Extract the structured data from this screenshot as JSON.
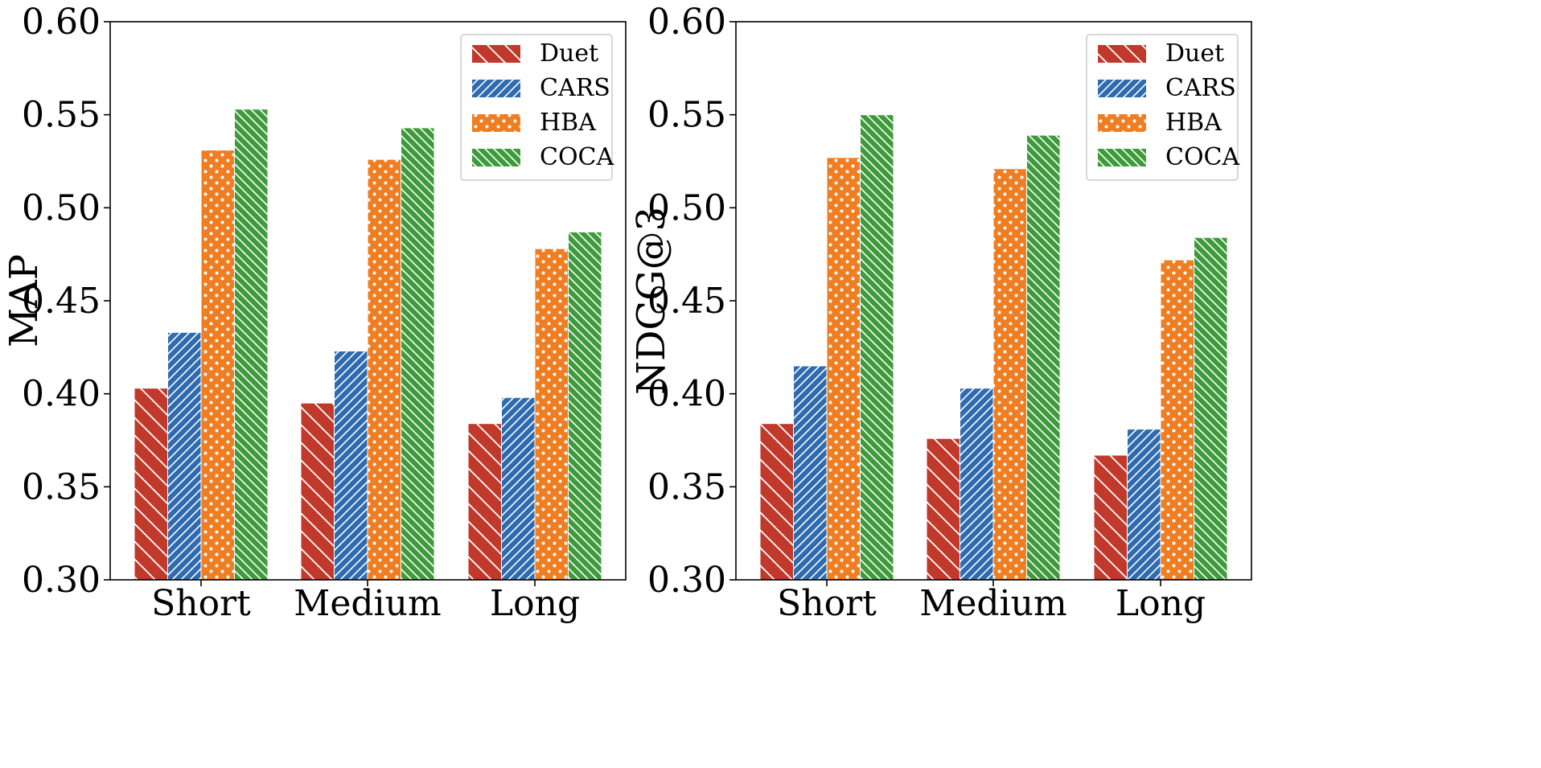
{
  "chart_data": [
    {
      "type": "bar",
      "title": "",
      "xlabel": "",
      "ylabel": "MAP",
      "ylim": [
        0.3,
        0.6
      ],
      "yticks": [
        "0.30",
        "0.35",
        "0.40",
        "0.45",
        "0.50",
        "0.55",
        "0.60"
      ],
      "categories": [
        "Short",
        "Medium",
        "Long"
      ],
      "legend_position": "top-right",
      "grid": false,
      "series": [
        {
          "name": "Duet",
          "values": [
            0.403,
            0.395,
            0.384
          ]
        },
        {
          "name": "CARS",
          "values": [
            0.433,
            0.423,
            0.398
          ]
        },
        {
          "name": "HBA",
          "values": [
            0.531,
            0.526,
            0.478
          ]
        },
        {
          "name": "COCA",
          "values": [
            0.553,
            0.543,
            0.487
          ]
        }
      ]
    },
    {
      "type": "bar",
      "title": "",
      "xlabel": "",
      "ylabel": "NDCG@3",
      "ylim": [
        0.3,
        0.6
      ],
      "yticks": [
        "0.30",
        "0.35",
        "0.40",
        "0.45",
        "0.50",
        "0.55",
        "0.60"
      ],
      "categories": [
        "Short",
        "Medium",
        "Long"
      ],
      "legend_position": "top-right",
      "grid": false,
      "series": [
        {
          "name": "Duet",
          "values": [
            0.384,
            0.376,
            0.367
          ]
        },
        {
          "name": "CARS",
          "values": [
            0.415,
            0.403,
            0.381
          ]
        },
        {
          "name": "HBA",
          "values": [
            0.527,
            0.521,
            0.472
          ]
        },
        {
          "name": "COCA",
          "values": [
            0.55,
            0.539,
            0.484
          ]
        }
      ]
    }
  ],
  "series_style": [
    {
      "name": "Duet",
      "color": "#c0392b",
      "hatch": "backslash"
    },
    {
      "name": "CARS",
      "color": "#2e6bb0",
      "hatch": "forwardslash-dense"
    },
    {
      "name": "HBA",
      "color": "#ef7d22",
      "hatch": "dots"
    },
    {
      "name": "COCA",
      "color": "#3f9a3c",
      "hatch": "backslash-dense"
    }
  ]
}
